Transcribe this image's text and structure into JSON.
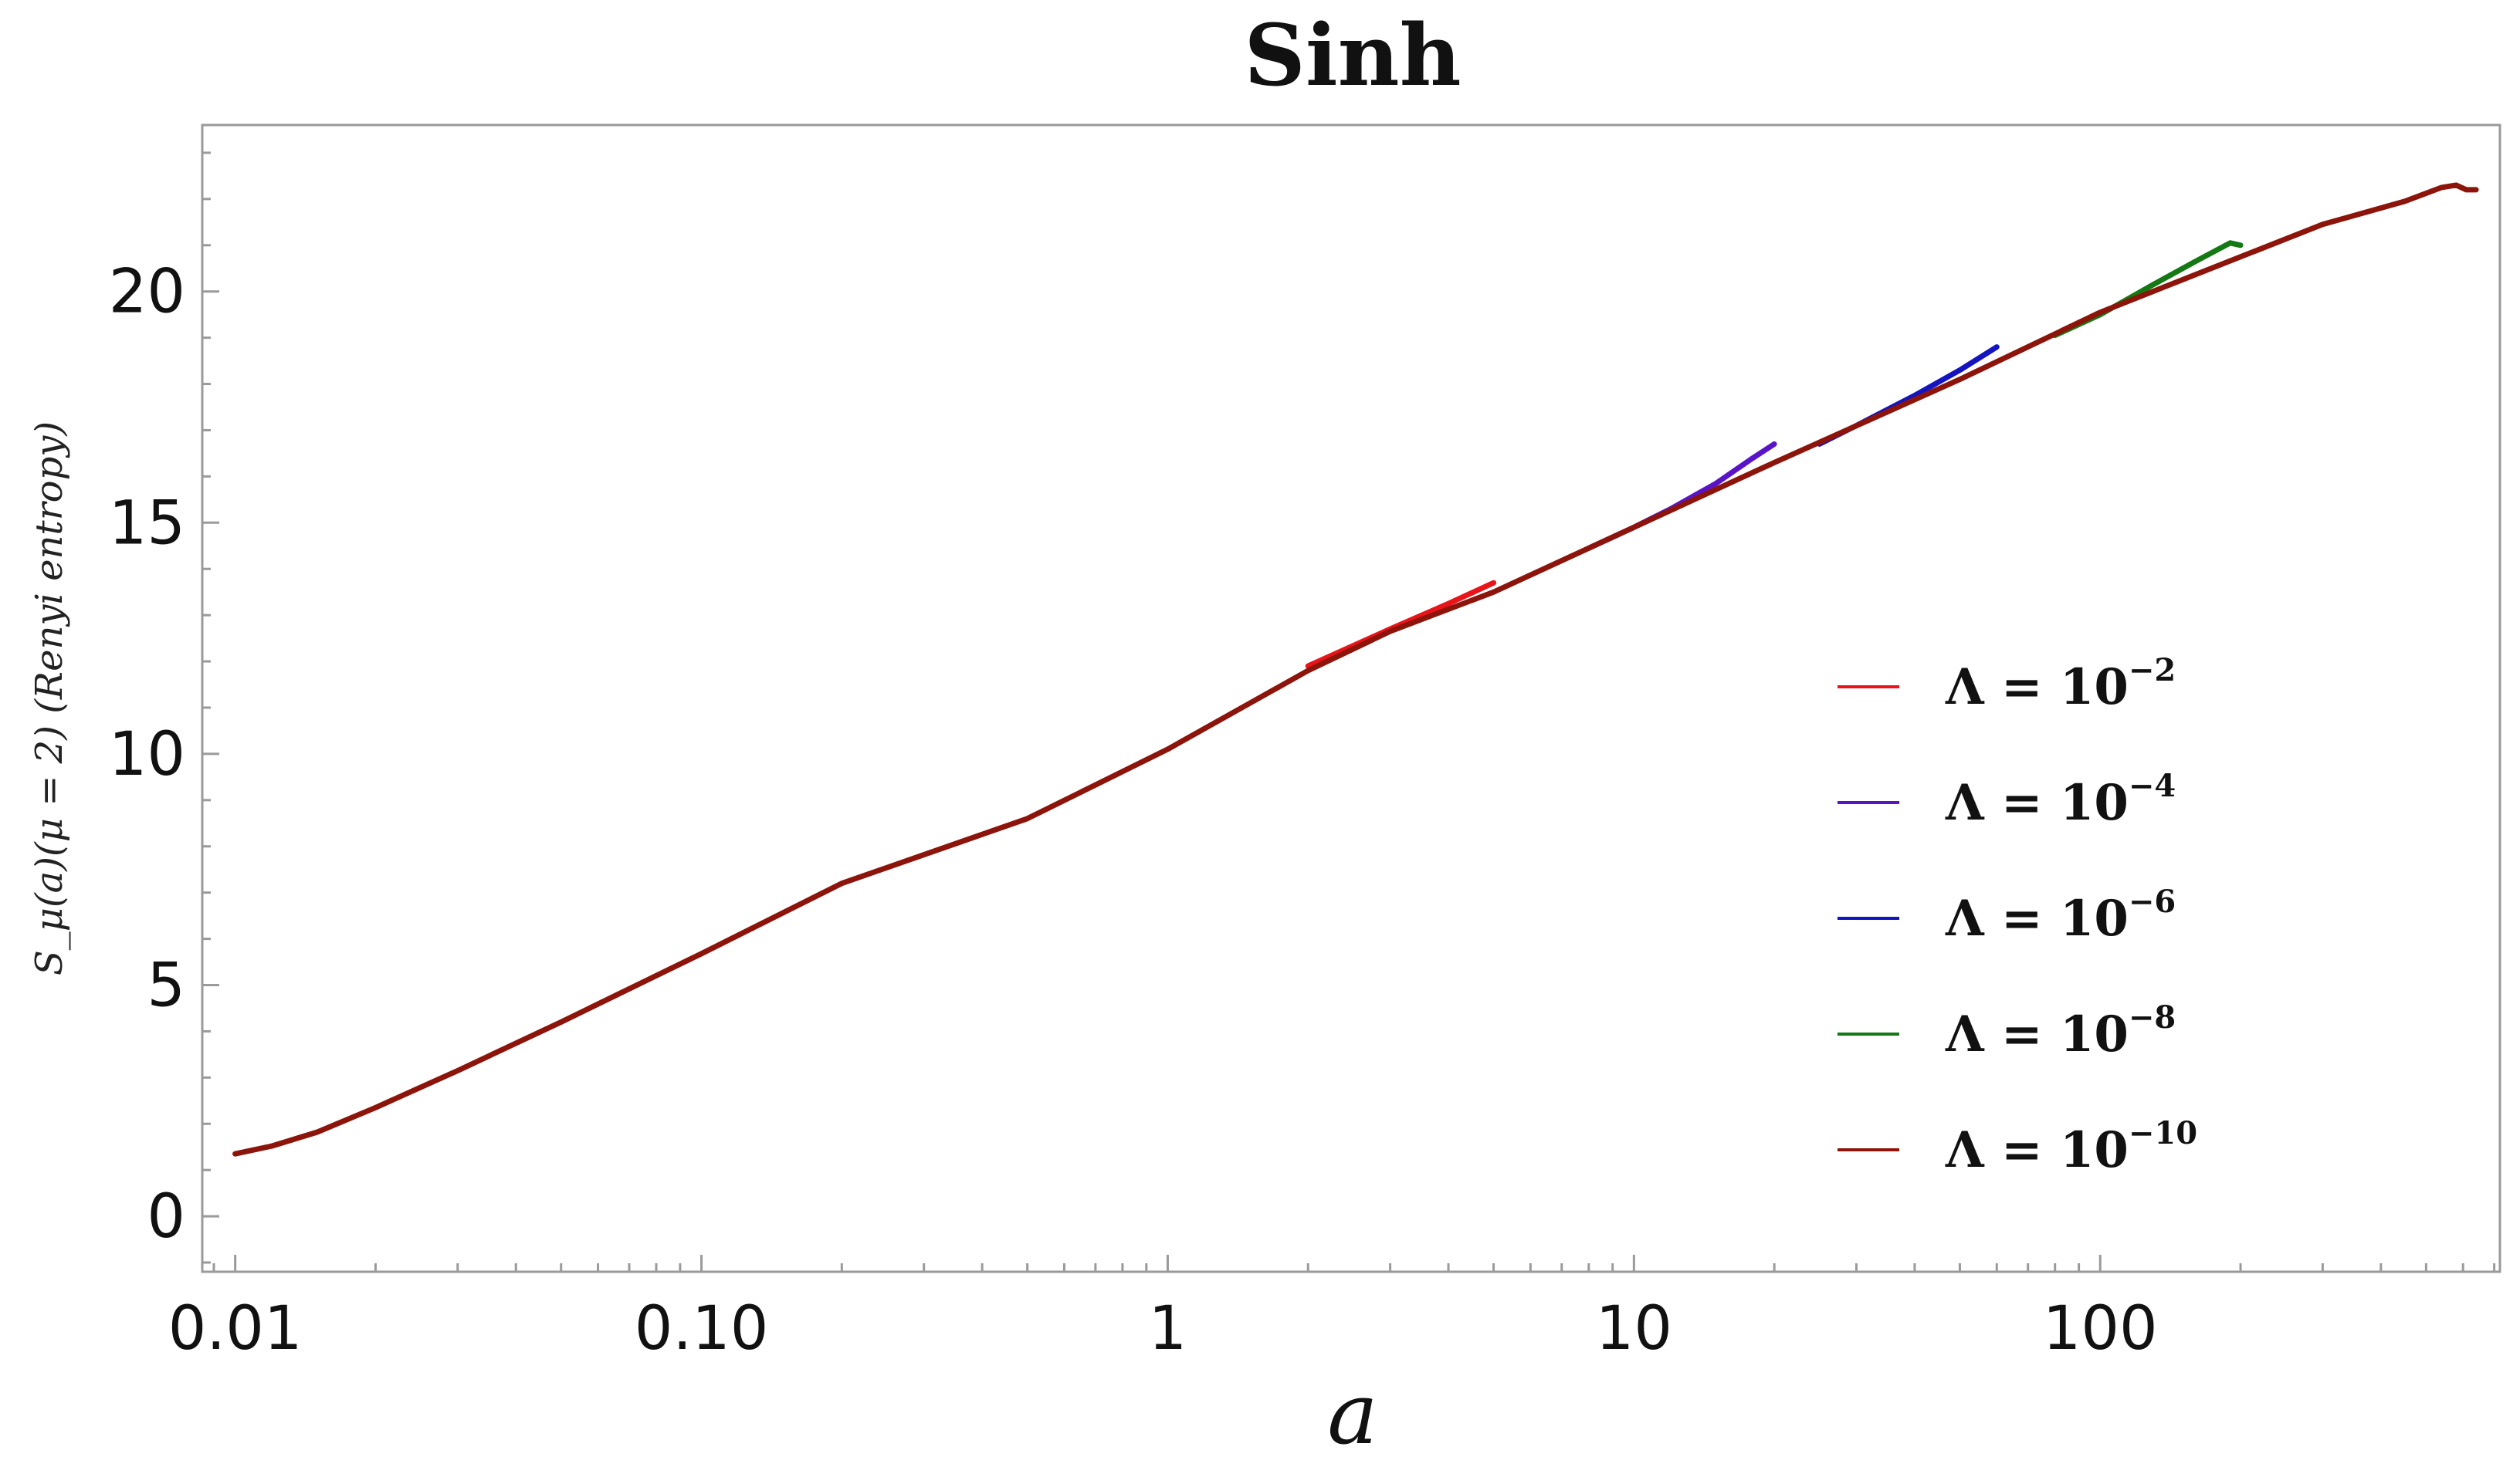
{
  "chart_data": {
    "type": "line",
    "title": "Sinh",
    "xlabel": "a",
    "ylabel": "S_μ(a)(μ = 2) (Renyi entropy)",
    "x_scale": "log",
    "xlim": [
      0.0085,
      720
    ],
    "ylim": [
      -1.2,
      23.6
    ],
    "x_ticks": [
      {
        "value": 0.01,
        "label": "0.01"
      },
      {
        "value": 0.1,
        "label": "0.10"
      },
      {
        "value": 1,
        "label": "1"
      },
      {
        "value": 10,
        "label": "10"
      },
      {
        "value": 100,
        "label": "100"
      }
    ],
    "y_ticks": [
      {
        "value": 0,
        "label": "0"
      },
      {
        "value": 5,
        "label": "5"
      },
      {
        "value": 10,
        "label": "10"
      },
      {
        "value": 15,
        "label": "15"
      },
      {
        "value": 20,
        "label": "20"
      }
    ],
    "grid": false,
    "legend_position": "right",
    "series": [
      {
        "name": "Λ = 10^−2",
        "legend_base": "Λ = 10",
        "legend_exp": "−2",
        "color": "#e8141a",
        "points": [
          [
            2,
            11.9
          ],
          [
            3,
            12.7
          ],
          [
            4,
            13.25
          ],
          [
            5,
            13.7
          ]
        ]
      },
      {
        "name": "Λ = 10^−4",
        "legend_base": "Λ = 10",
        "legend_exp": "−4",
        "color": "#5a14c8",
        "points": [
          [
            8,
            14.45
          ],
          [
            10,
            14.9
          ],
          [
            12,
            15.3
          ],
          [
            15,
            15.85
          ],
          [
            18,
            16.4
          ],
          [
            20,
            16.7
          ]
        ]
      },
      {
        "name": "Λ = 10^−6",
        "legend_base": "Λ = 10",
        "legend_exp": "−6",
        "color": "#1414c0",
        "points": [
          [
            25,
            16.7
          ],
          [
            30,
            17.1
          ],
          [
            40,
            17.75
          ],
          [
            50,
            18.3
          ],
          [
            60,
            18.8
          ]
        ]
      },
      {
        "name": "Λ = 10^−8",
        "legend_base": "Λ = 10",
        "legend_exp": "−8",
        "color": "#147814",
        "points": [
          [
            80,
            19.05
          ],
          [
            100,
            19.5
          ],
          [
            130,
            20.15
          ],
          [
            160,
            20.65
          ],
          [
            190,
            21.05
          ],
          [
            200,
            21.0
          ]
        ]
      },
      {
        "name": "Λ = 10^−10",
        "legend_base": "Λ = 10",
        "legend_exp": "−10",
        "color": "#8c140a",
        "points": [
          [
            0.01,
            1.35
          ],
          [
            0.012,
            1.52
          ],
          [
            0.015,
            1.82
          ],
          [
            0.02,
            2.35
          ],
          [
            0.03,
            3.15
          ],
          [
            0.05,
            4.2
          ],
          [
            0.1,
            5.68
          ],
          [
            0.2,
            7.2
          ],
          [
            0.5,
            8.6
          ],
          [
            1,
            10.1
          ],
          [
            2,
            11.8
          ],
          [
            3,
            12.65
          ],
          [
            5,
            13.5
          ],
          [
            10,
            14.9
          ],
          [
            20,
            16.3
          ],
          [
            50,
            18.1
          ],
          [
            100,
            19.55
          ],
          [
            200,
            20.75
          ],
          [
            300,
            21.45
          ],
          [
            450,
            21.95
          ],
          [
            540,
            22.25
          ],
          [
            580,
            22.3
          ],
          [
            610,
            22.2
          ],
          [
            640,
            22.2
          ]
        ]
      }
    ]
  }
}
